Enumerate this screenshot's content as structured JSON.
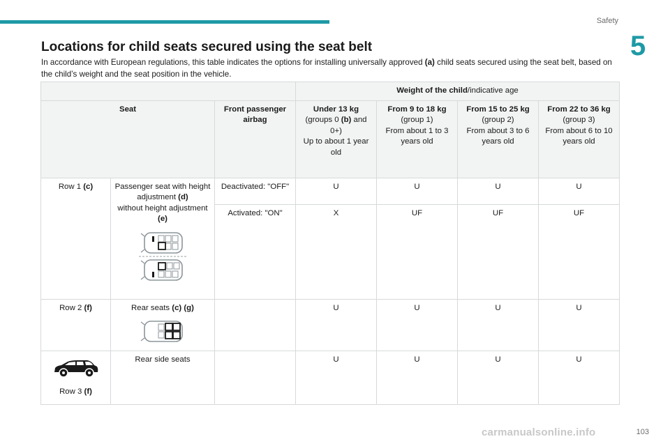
{
  "header": {
    "section": "Safety",
    "chapter_number": "5",
    "accent_color": "#1e9aa6"
  },
  "title": "Locations for child seats secured using the seat belt",
  "intro": {
    "text_1": "In accordance with European regulations, this table indicates the options for installing universally approved ",
    "ref_a": "(a)",
    "text_2": " child seats secured using the seat belt, based on the child’s weight and the seat position in the vehicle."
  },
  "table": {
    "weight_header_bold": "Weight of the child",
    "weight_header_rest": "/indicative age",
    "col_seat": "Seat",
    "col_airbag": "Front passenger airbag",
    "groups": [
      {
        "bold": "Under 13 kg",
        "line1_pre": "(groups 0 ",
        "line1_ref": "(b)",
        "line1_post": " and 0+)",
        "line2": "Up to about 1 year old"
      },
      {
        "bold": "From 9 to 18 kg",
        "line1_pre": "(group 1)",
        "line1_ref": "",
        "line1_post": "",
        "line2": "From about 1 to 3 years old"
      },
      {
        "bold": "From 15 to 25 kg",
        "line1_pre": "(group 2)",
        "line1_ref": "",
        "line1_post": "",
        "line2": "From about 3 to 6 years old"
      },
      {
        "bold": "From 22 to 36 kg",
        "line1_pre": "(group 3)",
        "line1_ref": "",
        "line1_post": "",
        "line2": "From about 6 to 10 years old"
      }
    ],
    "row1": {
      "label": "Row 1 ",
      "label_ref": "(c)",
      "seat_line1": "Passenger seat with height adjustment ",
      "seat_ref1": "(d)",
      "seat_line2": "without height adjustment ",
      "seat_ref2": "(e)",
      "deactivated": {
        "airbag": "Deactivated: \"OFF\"",
        "values": [
          "U",
          "U",
          "U",
          "U"
        ]
      },
      "activated": {
        "airbag": "Activated: \"ON\"",
        "values": [
          "X",
          "UF",
          "UF",
          "UF"
        ]
      }
    },
    "row2": {
      "label": "Row 2 ",
      "label_ref": "(f)",
      "seat_text": "Rear seats ",
      "seat_ref": "(c) (g)",
      "values": [
        "U",
        "U",
        "U",
        "U"
      ]
    },
    "row3": {
      "label": "Row 3 ",
      "label_ref": "(f)",
      "seat_text": "Rear side seats",
      "values": [
        "U",
        "U",
        "U",
        "U"
      ]
    }
  },
  "footer": {
    "page_number": "103",
    "watermark": "carmanualsonline.info"
  }
}
